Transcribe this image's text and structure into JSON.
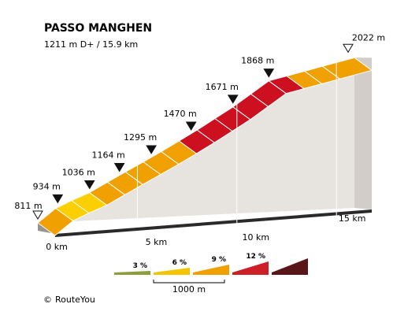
{
  "chart_data": {
    "type": "area",
    "title": "PASSO MANGHEN",
    "subtitle": "1211 m D+ / 15.9 km",
    "x_unit": "km",
    "y_unit": "m",
    "xlim": [
      0,
      15.9
    ],
    "distance_ticks": [
      {
        "km": 0,
        "label": "0 km"
      },
      {
        "km": 5,
        "label": "5 km"
      },
      {
        "km": 10,
        "label": "10 km"
      },
      {
        "km": 15,
        "label": "15 km"
      }
    ],
    "start": {
      "km": 0,
      "elevation": 811,
      "label": "811 m"
    },
    "summit": {
      "km": 15.9,
      "elevation": 2022,
      "label": "2022 m"
    },
    "kilometer_markers": [
      {
        "km": 1,
        "elevation": 934,
        "label": "934 m"
      },
      {
        "km": 2.6,
        "elevation": 1036,
        "label": "1036 m"
      },
      {
        "km": 4.1,
        "elevation": 1164,
        "label": "1164 m"
      },
      {
        "km": 5.7,
        "elevation": 1295,
        "label": "1295 m"
      },
      {
        "km": 7.7,
        "elevation": 1470,
        "label": "1470 m"
      },
      {
        "km": 9.8,
        "elevation": 1671,
        "label": "1671 m"
      },
      {
        "km": 11.6,
        "elevation": 1868,
        "label": "1868 m"
      }
    ],
    "segments": [
      {
        "x0": 0.0,
        "x1": 0.9,
        "grade": "6%"
      },
      {
        "x0": 0.9,
        "x1": 1.7,
        "grade": "3%"
      },
      {
        "x0": 1.7,
        "x1": 2.6,
        "grade": "3%"
      },
      {
        "x0": 2.6,
        "x1": 3.5,
        "grade": "6%"
      },
      {
        "x0": 3.5,
        "x1": 4.4,
        "grade": "6%"
      },
      {
        "x0": 4.4,
        "x1": 5.3,
        "grade": "6%"
      },
      {
        "x0": 5.3,
        "x1": 6.2,
        "grade": "6%"
      },
      {
        "x0": 6.2,
        "x1": 7.1,
        "grade": "6%"
      },
      {
        "x0": 7.1,
        "x1": 8.0,
        "grade": "9%"
      },
      {
        "x0": 8.0,
        "x1": 8.9,
        "grade": "9%"
      },
      {
        "x0": 8.9,
        "x1": 9.8,
        "grade": "9%"
      },
      {
        "x0": 9.8,
        "x1": 10.7,
        "grade": "9%"
      },
      {
        "x0": 10.7,
        "x1": 11.6,
        "grade": "9%"
      },
      {
        "x0": 11.6,
        "x1": 12.5,
        "grade": "9%"
      },
      {
        "x0": 12.5,
        "x1": 13.4,
        "grade": "6%"
      },
      {
        "x0": 13.4,
        "x1": 14.3,
        "grade": "6%"
      }
    ],
    "legend": {
      "items": [
        {
          "label": "3 %",
          "color": "#8ba03a",
          "grade": "3%"
        },
        {
          "label": "6 %",
          "color": "#f5c400",
          "grade": "6%"
        },
        {
          "label": "9 %",
          "color": "#f0a000",
          "grade": "9%"
        },
        {
          "label": "12 %",
          "color": "#cc1f26",
          "grade": "12%"
        },
        {
          "label": "",
          "color": "#5a1518",
          "grade": "15%"
        }
      ],
      "scale_label": "1000 m"
    },
    "grade_colors": {
      "3%": "#fcd000",
      "6%": "#f0a000",
      "9%": "#cc1020"
    }
  },
  "credit": {
    "symbol": "©",
    "text": "RouteYou"
  }
}
